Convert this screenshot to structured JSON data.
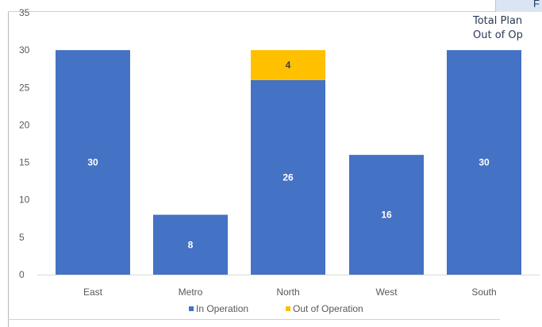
{
  "header_fragment": "F",
  "side_notes": [
    "Total Plan",
    "Out of Op"
  ],
  "colors": {
    "in_operation": "#4472C4",
    "out_of_operation": "#FFC000",
    "axis_text": "#595959",
    "bar_label": "#ffffff",
    "out_label": "#404040"
  },
  "chart_data": {
    "type": "bar",
    "stacked": true,
    "categories": [
      "East",
      "Metro",
      "North",
      "West",
      "South"
    ],
    "series": [
      {
        "name": "In Operation",
        "values": [
          30,
          8,
          26,
          16,
          30
        ]
      },
      {
        "name": "Out of Operation",
        "values": [
          0,
          0,
          4,
          0,
          0
        ]
      }
    ],
    "ylim": [
      0,
      35
    ],
    "yticks": [
      0,
      5,
      10,
      15,
      20,
      25,
      30,
      35
    ],
    "grid": false,
    "legend_position": "bottom"
  }
}
